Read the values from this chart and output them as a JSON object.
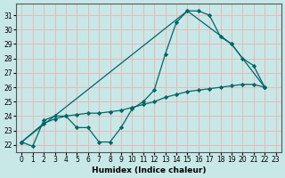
{
  "background_color": "#c8e8e8",
  "grid_color": "#e8b8b8",
  "line_color": "#006666",
  "xlabel": "Humidex (Indice chaleur)",
  "xlim": [
    -0.5,
    23.5
  ],
  "ylim": [
    21.5,
    31.8
  ],
  "xticks": [
    0,
    1,
    2,
    3,
    4,
    5,
    6,
    7,
    8,
    9,
    10,
    11,
    12,
    13,
    14,
    15,
    16,
    17,
    18,
    19,
    20,
    21,
    22,
    23
  ],
  "yticks": [
    22,
    23,
    24,
    25,
    26,
    27,
    28,
    29,
    30,
    31
  ],
  "line1_x": [
    0,
    1,
    2,
    3,
    4,
    5,
    6,
    7,
    8,
    9,
    10,
    11,
    12,
    13,
    14,
    15,
    16,
    17,
    18,
    19,
    20,
    21,
    22
  ],
  "line1_y": [
    22.2,
    21.9,
    23.7,
    24.0,
    24.0,
    23.2,
    23.2,
    22.2,
    22.2,
    23.2,
    24.5,
    25.0,
    25.8,
    28.3,
    30.5,
    31.3,
    31.3,
    31.0,
    29.5,
    29.0,
    28.0,
    27.5,
    26.0
  ],
  "line2_x": [
    0,
    15,
    19,
    22
  ],
  "line2_y": [
    22.2,
    31.3,
    29.0,
    26.0
  ],
  "line3_x": [
    0,
    2,
    3,
    4,
    5,
    6,
    7,
    8,
    9,
    10,
    11,
    12,
    13,
    14,
    15,
    16,
    17,
    18,
    19,
    20,
    21,
    22
  ],
  "line3_y": [
    22.2,
    23.5,
    23.8,
    24.0,
    24.1,
    24.2,
    24.2,
    24.3,
    24.4,
    24.6,
    24.8,
    25.0,
    25.3,
    25.5,
    25.7,
    25.8,
    25.9,
    26.0,
    26.1,
    26.2,
    26.2,
    26.0
  ]
}
